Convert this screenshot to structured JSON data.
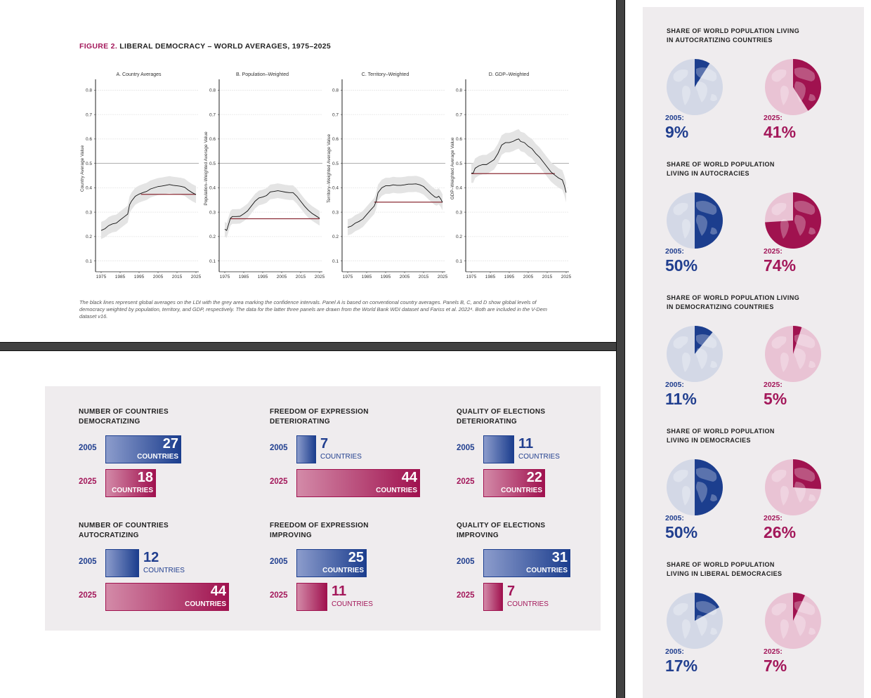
{
  "figure": {
    "title_accent": "FIGURE 2.",
    "title_rest": "LIBERAL DEMOCRACY – WORLD AVERAGES, 1975–2025",
    "caption": "The black lines represent global averages on the LDI with the grey area marking the confidence intervals. Panel A is based on conventional country averages. Panels B, C, and D show global levels of democracy weighted by population, territory, and GDP, respectively. The data for the latter three panels are drawn from the World Bank WDI dataset and Fariss et al. 2022⁴. Both are included in the V-Dem dataset v16."
  },
  "chart_data": [
    {
      "type": "line",
      "title": "A. Country Averages",
      "ylabel": "Country Average Value",
      "xlabel": "",
      "xlim": [
        1975,
        2025
      ],
      "ylim": [
        0.07,
        0.83
      ],
      "xticks": [
        "1975",
        "1985",
        "1995",
        "2005",
        "2015",
        "2025"
      ],
      "yticks": [
        "0.1",
        "0.2",
        "0.3",
        "0.4",
        "0.5",
        "0.6",
        "0.7",
        "0.8"
      ],
      "grid": true,
      "reference_line": 0.5,
      "x": [
        1975,
        1977,
        1979,
        1981,
        1983,
        1985,
        1987,
        1989,
        1990,
        1991,
        1993,
        1995,
        1997,
        1999,
        2001,
        2003,
        2005,
        2007,
        2009,
        2011,
        2013,
        2015,
        2017,
        2019,
        2021,
        2023,
        2025
      ],
      "series": [
        {
          "name": "LDI",
          "values": [
            0.225,
            0.232,
            0.245,
            0.252,
            0.255,
            0.268,
            0.28,
            0.292,
            0.33,
            0.345,
            0.365,
            0.374,
            0.38,
            0.385,
            0.395,
            0.4,
            0.405,
            0.407,
            0.41,
            0.413,
            0.41,
            0.408,
            0.406,
            0.402,
            0.39,
            0.38,
            0.372
          ]
        }
      ],
      "ci_width": 0.035,
      "level_line": {
        "value": 0.373,
        "from": 1996,
        "to": 2025
      }
    },
    {
      "type": "line",
      "title": "B. Population–Weighted",
      "ylabel": "Population–Weighted Average Value",
      "xlabel": "",
      "xlim": [
        1975,
        2025
      ],
      "ylim": [
        0.07,
        0.83
      ],
      "xticks": [
        "1975",
        "1985",
        "1995",
        "2005",
        "2015",
        "2025"
      ],
      "yticks": [
        "0.1",
        "0.2",
        "0.3",
        "0.4",
        "0.5",
        "0.6",
        "0.7",
        "0.8"
      ],
      "grid": true,
      "reference_line": 0.5,
      "x": [
        1975,
        1976,
        1977,
        1978,
        1979,
        1981,
        1983,
        1985,
        1987,
        1989,
        1991,
        1993,
        1995,
        1997,
        1999,
        2001,
        2003,
        2005,
        2007,
        2009,
        2011,
        2013,
        2015,
        2017,
        2019,
        2021,
        2023,
        2025
      ],
      "series": [
        {
          "name": "LDI",
          "values": [
            0.23,
            0.225,
            0.25,
            0.275,
            0.282,
            0.282,
            0.283,
            0.293,
            0.305,
            0.325,
            0.345,
            0.358,
            0.362,
            0.368,
            0.383,
            0.385,
            0.388,
            0.385,
            0.382,
            0.38,
            0.38,
            0.365,
            0.345,
            0.325,
            0.308,
            0.295,
            0.285,
            0.275
          ]
        }
      ],
      "ci_width": 0.03,
      "level_line": {
        "value": 0.273,
        "from": 1978,
        "to": 2025
      }
    },
    {
      "type": "line",
      "title": "C. Territory–Weighted",
      "ylabel": "Territory–Weighted Average Value",
      "xlabel": "",
      "xlim": [
        1975,
        2025
      ],
      "ylim": [
        0.07,
        0.83
      ],
      "xticks": [
        "1975",
        "1985",
        "1995",
        "2005",
        "2015",
        "2025"
      ],
      "yticks": [
        "0.1",
        "0.2",
        "0.3",
        "0.4",
        "0.5",
        "0.6",
        "0.7",
        "0.8"
      ],
      "grid": true,
      "reference_line": 0.5,
      "x": [
        1975,
        1977,
        1979,
        1981,
        1983,
        1985,
        1987,
        1989,
        1990,
        1991,
        1993,
        1995,
        1997,
        1999,
        2001,
        2003,
        2005,
        2007,
        2009,
        2011,
        2013,
        2015,
        2017,
        2019,
        2021,
        2022,
        2023,
        2024,
        2025
      ],
      "series": [
        {
          "name": "LDI",
          "values": [
            0.238,
            0.243,
            0.255,
            0.262,
            0.272,
            0.29,
            0.308,
            0.325,
            0.345,
            0.38,
            0.4,
            0.408,
            0.408,
            0.412,
            0.41,
            0.41,
            0.412,
            0.415,
            0.415,
            0.416,
            0.412,
            0.405,
            0.39,
            0.375,
            0.362,
            0.36,
            0.365,
            0.355,
            0.34
          ]
        }
      ],
      "ci_width": 0.033,
      "level_line": {
        "value": 0.341,
        "from": 1989,
        "to": 2025
      }
    },
    {
      "type": "line",
      "title": "D. GDP–Weighted",
      "ylabel": "GDP–Weighted Average Value",
      "xlabel": "",
      "xlim": [
        1975,
        2025
      ],
      "ylim": [
        0.07,
        0.83
      ],
      "xticks": [
        "1975",
        "1985",
        "1995",
        "2005",
        "2015",
        "2025"
      ],
      "yticks": [
        "0.1",
        "0.2",
        "0.3",
        "0.4",
        "0.5",
        "0.6",
        "0.7",
        "0.8"
      ],
      "grid": true,
      "reference_line": 0.5,
      "x": [
        1975,
        1976,
        1977,
        1979,
        1981,
        1983,
        1985,
        1987,
        1989,
        1991,
        1993,
        1995,
        1997,
        1999,
        2000,
        2001,
        2003,
        2005,
        2007,
        2009,
        2011,
        2013,
        2015,
        2017,
        2019,
        2021,
        2023,
        2024,
        2025
      ],
      "series": [
        {
          "name": "LDI",
          "values": [
            0.46,
            0.46,
            0.48,
            0.49,
            0.495,
            0.495,
            0.505,
            0.515,
            0.54,
            0.575,
            0.585,
            0.585,
            0.59,
            0.598,
            0.6,
            0.59,
            0.585,
            0.57,
            0.56,
            0.54,
            0.525,
            0.505,
            0.485,
            0.465,
            0.452,
            0.44,
            0.432,
            0.41,
            0.38
          ]
        }
      ],
      "ci_width": 0.04,
      "level_line": {
        "value": 0.458,
        "from": 1975,
        "to": 2019
      }
    }
  ],
  "bar_groups": [
    {
      "title": "NUMBER OF COUNTRIES DEMOCRATIZING",
      "rows": [
        {
          "year": "2005",
          "value": 27,
          "unit": "COUNTRIES"
        },
        {
          "year": "2025",
          "value": 18,
          "unit": "COUNTRIES"
        }
      ]
    },
    {
      "title": "FREEDOM OF EXPRESSION DETERIORATING",
      "rows": [
        {
          "year": "2005",
          "value": 7,
          "unit": "COUNTRIES"
        },
        {
          "year": "2025",
          "value": 44,
          "unit": "COUNTRIES"
        }
      ]
    },
    {
      "title": "QUALITY OF ELECTIONS DETERIORATING",
      "rows": [
        {
          "year": "2005",
          "value": 11,
          "unit": "COUNTRIES"
        },
        {
          "year": "2025",
          "value": 22,
          "unit": "COUNTRIES"
        }
      ]
    },
    {
      "title": "NUMBER OF COUNTRIES AUTOCRATIZING",
      "rows": [
        {
          "year": "2005",
          "value": 12,
          "unit": "COUNTRIES"
        },
        {
          "year": "2025",
          "value": 44,
          "unit": "COUNTRIES"
        }
      ]
    },
    {
      "title": "FREEDOM OF EXPRESSION IMPROVING",
      "rows": [
        {
          "year": "2005",
          "value": 25,
          "unit": "COUNTRIES"
        },
        {
          "year": "2025",
          "value": 11,
          "unit": "COUNTRIES"
        }
      ]
    },
    {
      "title": "QUALITY OF ELECTIONS IMPROVING",
      "rows": [
        {
          "year": "2005",
          "value": 31,
          "unit": "COUNTRIES"
        },
        {
          "year": "2025",
          "value": 7,
          "unit": "COUNTRIES"
        }
      ]
    }
  ],
  "pie_groups": [
    {
      "title_line1": "SHARE OF WORLD POPULATION LIVING",
      "title_line2": "IN AUTOCRATIZING COUNTRIES",
      "left": {
        "label": "2005:",
        "pct": 9,
        "text": "9%"
      },
      "right": {
        "label": "2025:",
        "pct": 41,
        "text": "41%"
      }
    },
    {
      "title_line1": "SHARE OF WORLD POPULATION",
      "title_line2": "LIVING IN AUTOCRACIES",
      "left": {
        "label": "2005:",
        "pct": 50,
        "text": "50%"
      },
      "right": {
        "label": "2025:",
        "pct": 74,
        "text": "74%"
      }
    },
    {
      "title_line1": "SHARE OF WORLD POPULATION LIVING",
      "title_line2": "IN DEMOCRATIZING COUNTRIES",
      "left": {
        "label": "2005:",
        "pct": 11,
        "text": "11%"
      },
      "right": {
        "label": "2025:",
        "pct": 5,
        "text": "5%"
      }
    },
    {
      "title_line1": "SHARE OF WORLD POPULATION",
      "title_line2": "LIVING IN DEMOCRACIES",
      "left": {
        "label": "2005:",
        "pct": 50,
        "text": "50%"
      },
      "right": {
        "label": "2025:",
        "pct": 26,
        "text": "26%"
      }
    },
    {
      "title_line1": "SHARE OF WORLD POPULATION",
      "title_line2": "LIVING IN LIBERAL DEMOCRACIES",
      "left": {
        "label": "2005:",
        "pct": 17,
        "text": "17%"
      },
      "right": {
        "label": "2025:",
        "pct": 7,
        "text": "7%"
      }
    }
  ],
  "colors": {
    "blue": "#1c3e8e",
    "blue_light": "#d3d8e6",
    "red": "#a0124f",
    "red_light": "#e9c3d4",
    "ci_grey": "#e4e4e4",
    "level_line": "#8b2b35",
    "panel_bg": "#efecee"
  }
}
